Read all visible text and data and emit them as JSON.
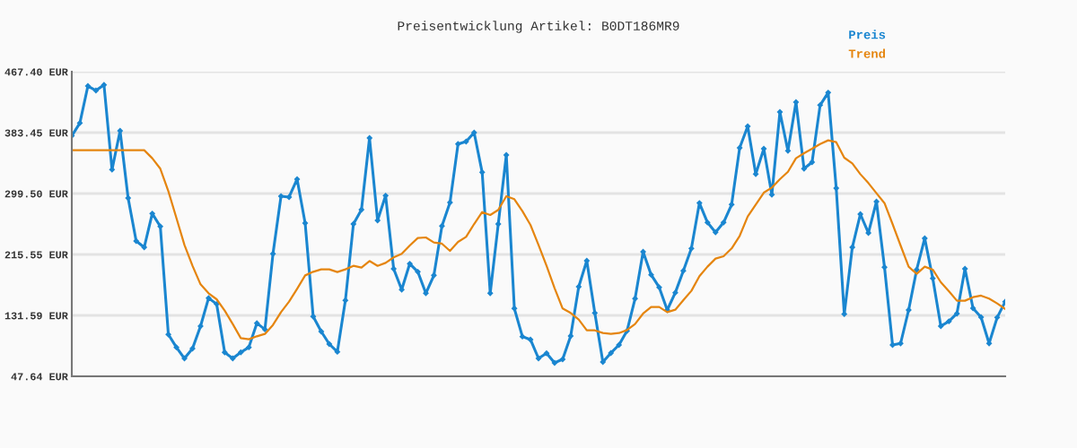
{
  "chart_data": {
    "type": "line",
    "title": "Preisentwicklung Artikel: B0DT186MR9",
    "categories": [
      null,
      null,
      null,
      null,
      null,
      null,
      null,
      null,
      null,
      null,
      null,
      null,
      null,
      null,
      null,
      null,
      null,
      null,
      null,
      null,
      null,
      null,
      null,
      null,
      null,
      null,
      null,
      null,
      null,
      null,
      null,
      null,
      null,
      null,
      null,
      null,
      null,
      null,
      null,
      null,
      null,
      null,
      null,
      null,
      null,
      null,
      null,
      null,
      null,
      null,
      null,
      null,
      null,
      null,
      null,
      null,
      null,
      null,
      null,
      null,
      null,
      null,
      null,
      null,
      null,
      null,
      null,
      null,
      null,
      null,
      null,
      null,
      null,
      null,
      null,
      null,
      null,
      null,
      null,
      null,
      null,
      null,
      null,
      null,
      null,
      null,
      null,
      null,
      null,
      null,
      null,
      null,
      null,
      null,
      null,
      null,
      null,
      null,
      null,
      null,
      null,
      null,
      null,
      null,
      null,
      null,
      null,
      null,
      null,
      null,
      null,
      null,
      null,
      null,
      null,
      null,
      null
    ],
    "series": [
      {
        "name": "Preis",
        "color": "#1a86d0",
        "marker": "diamond",
        "values": [
          379.0,
          396.6,
          447.6,
          441.5,
          449.3,
          332.4,
          385.9,
          293.3,
          234.1,
          225.4,
          271.9,
          254.2,
          105.3,
          87.6,
          72.3,
          85.9,
          116.8,
          155.5,
          147.2,
          80.6,
          72.3,
          80.6,
          87.6,
          120.9,
          112.3,
          216.4,
          295.8,
          294.6,
          319.3,
          258.8,
          130.0,
          109.4,
          92.1,
          81.4,
          152.2,
          257.5,
          277.3,
          376.0,
          262.5,
          296.6,
          195.8,
          167.0,
          202.8,
          191.7,
          162.1,
          186.8,
          254.7,
          287.2,
          367.8,
          371.1,
          383.5,
          328.7,
          162.1,
          257.5,
          352.6,
          141.1,
          102.4,
          98.3,
          72.3,
          79.4,
          66.2,
          71.1,
          103.2,
          171.1,
          206.9,
          134.9,
          67.4,
          79.8,
          90.9,
          110.2,
          154.7,
          219.3,
          187.6,
          170.3,
          139.0,
          162.9,
          193.0,
          223.8,
          286.4,
          259.6,
          246.0,
          259.6,
          284.3,
          362.5,
          392.1,
          326.3,
          361.2,
          297.9,
          411.8,
          358.3,
          425.4,
          333.7,
          342.7,
          421.3,
          438.6,
          306.9,
          133.3,
          225.4,
          271.1,
          245.2,
          288.4,
          197.9,
          90.9,
          93.0,
          139.0,
          194.6,
          237.8,
          182.6,
          116.8,
          123.4,
          134.1,
          195.8,
          141.5,
          129.1,
          93.0,
          128.7,
          150.5
        ]
      },
      {
        "name": "Trend",
        "color": "#e5850f",
        "values": [
          359.2,
          359.2,
          359.2,
          359.2,
          359.2,
          359.2,
          359.2,
          359.2,
          359.2,
          359.2,
          348.1,
          333.7,
          302.8,
          265.8,
          228.7,
          199.9,
          174.4,
          162.1,
          153.8,
          138.2,
          119.7,
          100.3,
          98.7,
          102.8,
          106.1,
          118.4,
          136.1,
          150.5,
          168.2,
          186.7,
          191.7,
          195.0,
          195.0,
          191.3,
          195.0,
          199.9,
          197.5,
          206.5,
          199.9,
          204.0,
          211.5,
          216.4,
          227.9,
          238.2,
          239.0,
          232.0,
          230.4,
          220.5,
          232.8,
          239.8,
          257.5,
          273.9,
          269.9,
          276.9,
          295.8,
          291.7,
          275.2,
          256.3,
          228.7,
          199.9,
          169.1,
          141.1,
          134.9,
          125.9,
          111.0,
          111.0,
          107.3,
          106.1,
          107.3,
          111.4,
          119.7,
          134.1,
          143.1,
          143.1,
          136.1,
          139.4,
          152.6,
          165.4,
          185.5,
          198.7,
          209.8,
          213.1,
          223.8,
          241.1,
          267.8,
          284.3,
          300.7,
          307.7,
          319.2,
          329.5,
          348.1,
          355.1,
          361.2,
          367.8,
          372.8,
          370.3,
          348.9,
          341.1,
          326.2,
          313.9,
          299.9,
          286.3,
          257.5,
          227.9,
          198.7,
          188.8,
          198.7,
          194.6,
          177.3,
          164.9,
          151.8,
          151.8,
          156.7,
          158.8,
          154.7,
          148.1,
          140.3
        ]
      }
    ],
    "ylim": [
      47.64,
      467.4
    ],
    "yticks": [
      {
        "value": 47.64,
        "label": "47.64 EUR"
      },
      {
        "value": 131.59,
        "label": "131.59 EUR"
      },
      {
        "value": 215.55,
        "label": "215.55 EUR"
      },
      {
        "value": 299.5,
        "label": "299.50 EUR"
      },
      {
        "value": 383.45,
        "label": "383.45 EUR"
      },
      {
        "value": 467.4,
        "label": "467.40 EUR"
      }
    ],
    "grid": "y",
    "legend": "top right",
    "line_style": "solid"
  }
}
